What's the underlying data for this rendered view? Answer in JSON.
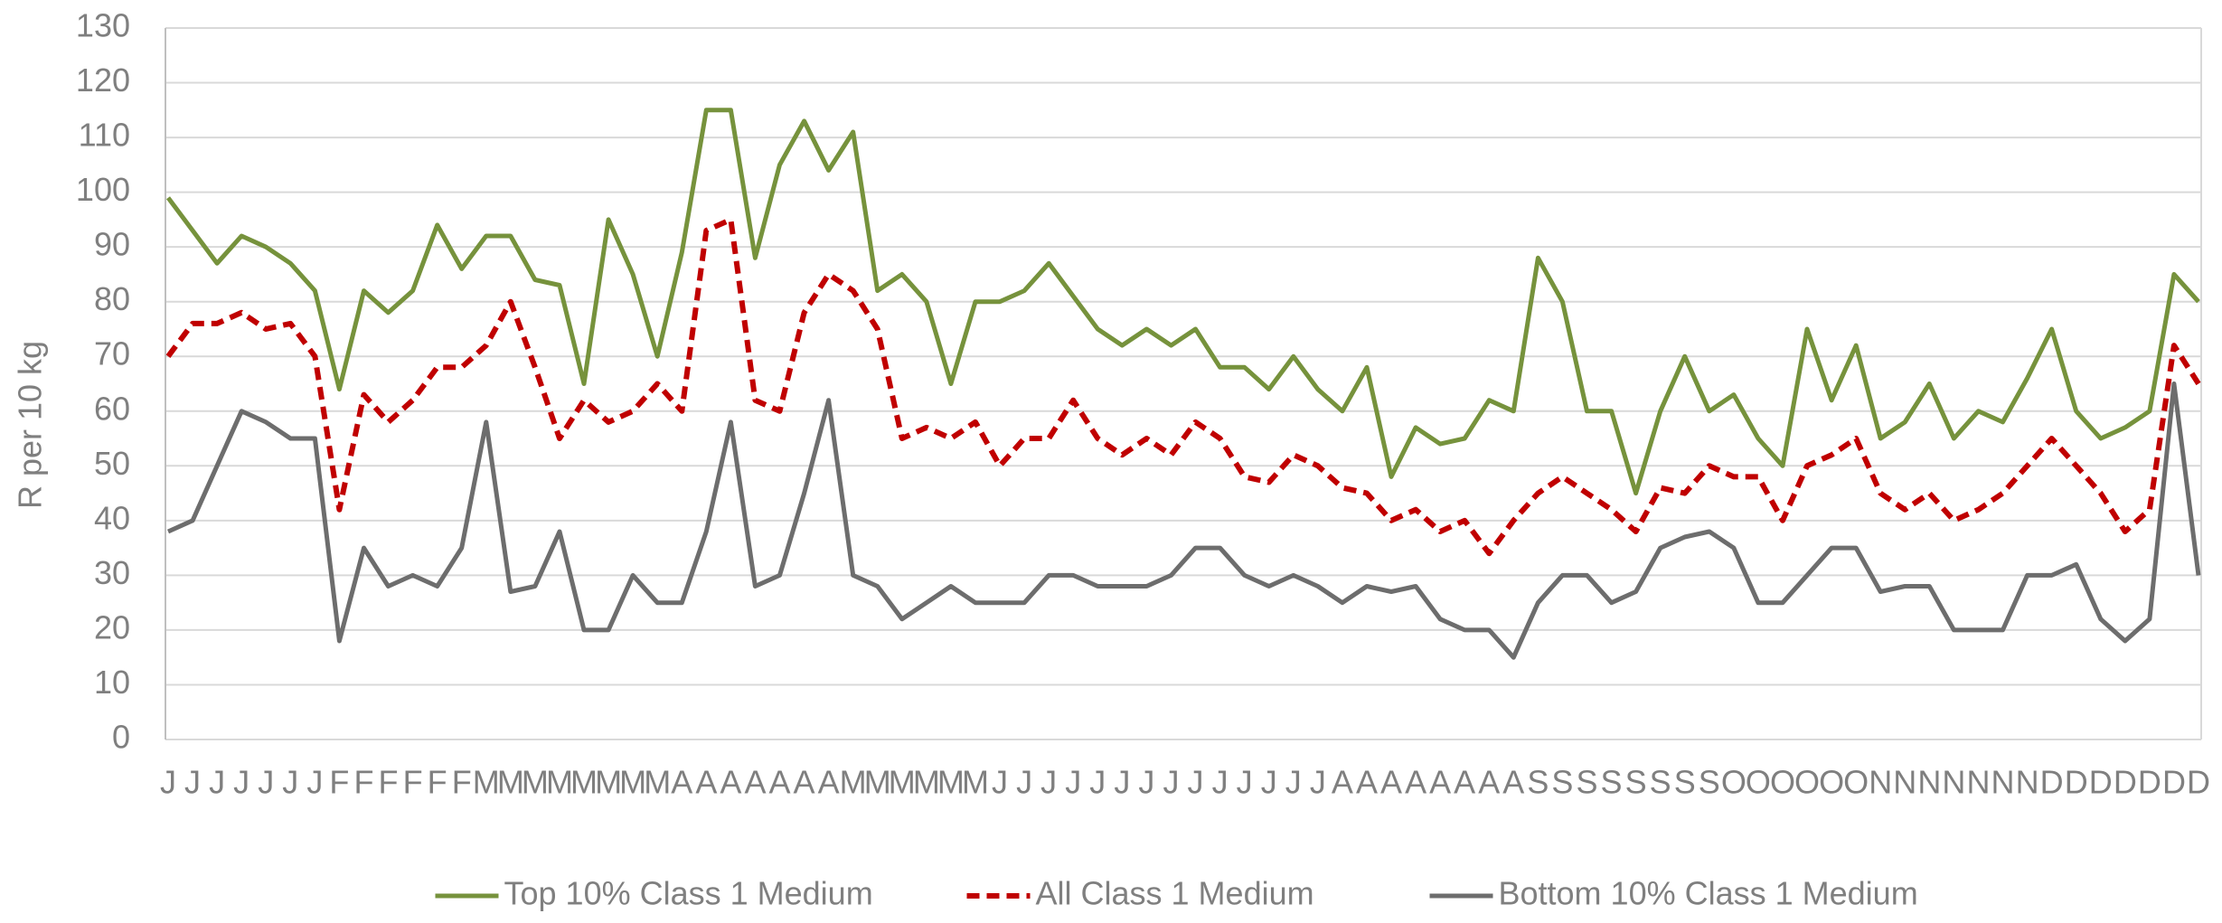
{
  "chart_data": {
    "type": "line",
    "y_label": "R per 10 kg",
    "categories": [
      "J",
      "J",
      "J",
      "J",
      "J",
      "J",
      "J",
      "F",
      "F",
      "F",
      "F",
      "F",
      "F",
      "M",
      "M",
      "M",
      "M",
      "M",
      "M",
      "M",
      "M",
      "A",
      "A",
      "A",
      "A",
      "A",
      "A",
      "A",
      "M",
      "M",
      "M",
      "M",
      "M",
      "M",
      "J",
      "J",
      "J",
      "J",
      "J",
      "J",
      "J",
      "J",
      "J",
      "J",
      "J",
      "J",
      "J",
      "J",
      "A",
      "A",
      "A",
      "A",
      "A",
      "A",
      "A",
      "A",
      "S",
      "S",
      "S",
      "S",
      "S",
      "S",
      "S",
      "S",
      "O",
      "O",
      "O",
      "O",
      "O",
      "O",
      "N",
      "N",
      "N",
      "N",
      "N",
      "N",
      "N",
      "D",
      "D",
      "D",
      "D",
      "D",
      "D",
      "D"
    ],
    "series": [
      {
        "name": "Top 10% Class 1 Medium",
        "color": "#76923c",
        "dashed": false,
        "values": [
          99,
          93,
          87,
          92,
          90,
          87,
          82,
          64,
          82,
          78,
          82,
          94,
          86,
          92,
          92,
          84,
          83,
          65,
          95,
          85,
          70,
          89,
          115,
          115,
          88,
          105,
          113,
          104,
          111,
          82,
          85,
          80,
          65,
          80,
          80,
          82,
          87,
          81,
          75,
          72,
          75,
          72,
          75,
          68,
          68,
          64,
          70,
          64,
          60,
          68,
          48,
          57,
          54,
          55,
          62,
          60,
          88,
          80,
          60,
          60,
          45,
          60,
          70,
          60,
          63,
          55,
          50,
          75,
          62,
          72,
          55,
          58,
          65,
          55,
          60,
          58,
          66,
          75,
          60,
          55,
          57,
          60,
          85,
          80
        ]
      },
      {
        "name": "All Class 1 Medium",
        "color": "#c00000",
        "dashed": true,
        "values": [
          70,
          76,
          76,
          78,
          75,
          76,
          70,
          42,
          63,
          58,
          62,
          68,
          68,
          72,
          80,
          68,
          55,
          62,
          58,
          60,
          65,
          60,
          93,
          95,
          62,
          60,
          78,
          85,
          82,
          75,
          55,
          57,
          55,
          58,
          50,
          55,
          55,
          62,
          55,
          52,
          55,
          52,
          58,
          55,
          48,
          47,
          52,
          50,
          46,
          45,
          40,
          42,
          38,
          40,
          34,
          40,
          45,
          48,
          45,
          42,
          38,
          46,
          45,
          50,
          48,
          48,
          40,
          50,
          52,
          55,
          45,
          42,
          45,
          40,
          42,
          45,
          50,
          55,
          50,
          45,
          38,
          42,
          72,
          65
        ]
      },
      {
        "name": "Bottom 10% Class 1 Medium",
        "color": "#6d6d6d",
        "dashed": false,
        "values": [
          38,
          40,
          50,
          60,
          58,
          55,
          55,
          18,
          35,
          28,
          30,
          28,
          35,
          58,
          27,
          28,
          38,
          20,
          20,
          30,
          25,
          25,
          38,
          58,
          28,
          30,
          45,
          62,
          30,
          28,
          22,
          25,
          28,
          25,
          25,
          25,
          30,
          30,
          28,
          28,
          28,
          30,
          35,
          35,
          30,
          28,
          30,
          28,
          25,
          28,
          27,
          28,
          22,
          20,
          20,
          15,
          25,
          30,
          30,
          25,
          27,
          35,
          37,
          38,
          35,
          25,
          25,
          30,
          35,
          35,
          27,
          28,
          28,
          20,
          20,
          20,
          30,
          30,
          32,
          22,
          18,
          22,
          65,
          30
        ]
      }
    ],
    "ylim": [
      0,
      130
    ],
    "yticks": [
      0,
      10,
      20,
      30,
      40,
      50,
      60,
      70,
      80,
      90,
      100,
      110,
      120,
      130
    ],
    "grid": true,
    "legend": "bottom"
  }
}
